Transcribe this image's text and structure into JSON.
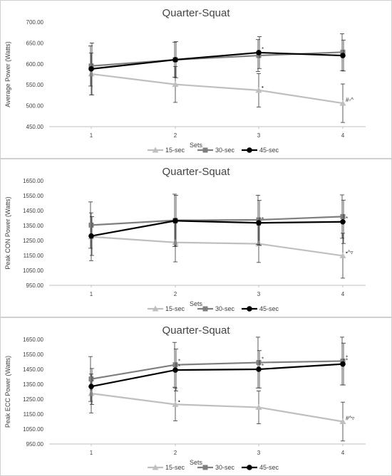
{
  "chart_data": [
    {
      "type": "line",
      "title": "Quarter-Squat",
      "xlabel": "Sets",
      "ylabel": "Average Power (Watts)",
      "categories": [
        "1",
        "2",
        "3",
        "4"
      ],
      "ylim": [
        450,
        700
      ],
      "yticks": [
        "450.00",
        "500.00",
        "550.00",
        "600.00",
        "650.00",
        "700.00"
      ],
      "yticks_values": [
        450,
        500,
        550,
        600,
        650,
        700
      ],
      "series": [
        {
          "name": "15-sec",
          "color": "#bfbfbf",
          "marker": "triangle",
          "values": [
            576,
            551,
            537,
            506
          ],
          "err": [
            50,
            43,
            40,
            46
          ]
        },
        {
          "name": "30-sec",
          "color": "#7f7f7f",
          "marker": "square",
          "values": [
            595,
            610,
            620,
            628
          ],
          "err": [
            48,
            42,
            38,
            44
          ]
        },
        {
          "name": "45-sec",
          "color": "#000000",
          "marker": "circle",
          "values": [
            588,
            610,
            627,
            620
          ],
          "err": [
            62,
            43,
            38,
            37
          ]
        }
      ],
      "annotations": [
        {
          "series": "45-sec",
          "index": 2,
          "text": "*"
        },
        {
          "series": "15-sec",
          "index": 2,
          "text": "•"
        },
        {
          "series": "15-sec",
          "index": 3,
          "text": "#◦^"
        }
      ]
    },
    {
      "type": "line",
      "title": "Quarter-Squat",
      "xlabel": "Sets",
      "ylabel": "Peak CON Power  (Watts)",
      "categories": [
        "1",
        "2",
        "3",
        "4"
      ],
      "ylim": [
        950,
        1650
      ],
      "yticks": [
        "950.00",
        "1050.00",
        "1150.00",
        "1250.00",
        "1350.00",
        "1450.00",
        "1550.00",
        "1650.00"
      ],
      "yticks_values": [
        950,
        1050,
        1150,
        1250,
        1350,
        1450,
        1550,
        1650
      ],
      "series": [
        {
          "name": "15-sec",
          "color": "#bfbfbf",
          "marker": "triangle",
          "values": [
            1275,
            1237,
            1228,
            1148
          ],
          "err": [
            160,
            130,
            125,
            150
          ]
        },
        {
          "name": "30-sec",
          "color": "#7f7f7f",
          "marker": "square",
          "values": [
            1353,
            1385,
            1388,
            1410
          ],
          "err": [
            155,
            175,
            165,
            145
          ]
        },
        {
          "name": "45-sec",
          "color": "#000000",
          "marker": "circle",
          "values": [
            1280,
            1382,
            1368,
            1375
          ],
          "err": [
            130,
            170,
            150,
            145
          ]
        }
      ],
      "annotations": [
        {
          "series": "45-sec",
          "index": 2,
          "text": "*"
        },
        {
          "series": "45-sec",
          "index": 3,
          "text": "*"
        },
        {
          "series": "15-sec",
          "index": 3,
          "text": "•^▿"
        }
      ]
    },
    {
      "type": "line",
      "title": "Quarter-Squat",
      "xlabel": "Sets",
      "ylabel": "Peak ECC Power (Watts)",
      "categories": [
        "1",
        "2",
        "3",
        "4"
      ],
      "ylim": [
        950,
        1650
      ],
      "yticks": [
        "950.00",
        "1050.00",
        "1150.00",
        "1250.00",
        "1350.00",
        "1450.00",
        "1550.00",
        "1650.00"
      ],
      "yticks_values": [
        950,
        1050,
        1150,
        1250,
        1350,
        1450,
        1550,
        1650
      ],
      "series": [
        {
          "name": "15-sec",
          "color": "#bfbfbf",
          "marker": "triangle",
          "values": [
            1288,
            1215,
            1195,
            1100
          ],
          "err": [
            130,
            110,
            110,
            130
          ]
        },
        {
          "name": "30-sec",
          "color": "#7f7f7f",
          "marker": "square",
          "values": [
            1385,
            1480,
            1495,
            1505
          ],
          "err": [
            150,
            150,
            170,
            160
          ]
        },
        {
          "name": "45-sec",
          "color": "#000000",
          "marker": "circle",
          "values": [
            1335,
            1445,
            1450,
            1485
          ],
          "err": [
            120,
            140,
            125,
            140
          ]
        }
      ],
      "annotations": [
        {
          "series": "30-sec",
          "index": 1,
          "text": "*"
        },
        {
          "series": "45-sec",
          "index": 1,
          "text": "*"
        },
        {
          "series": "15-sec",
          "index": 1,
          "text": "•"
        },
        {
          "series": "30-sec",
          "index": 2,
          "text": "*"
        },
        {
          "series": "45-sec",
          "index": 2,
          "text": "*"
        },
        {
          "series": "30-sec",
          "index": 3,
          "text": "*"
        },
        {
          "series": "45-sec",
          "index": 3,
          "text": "*"
        },
        {
          "series": "15-sec",
          "index": 3,
          "text": "#^▿"
        }
      ]
    }
  ]
}
